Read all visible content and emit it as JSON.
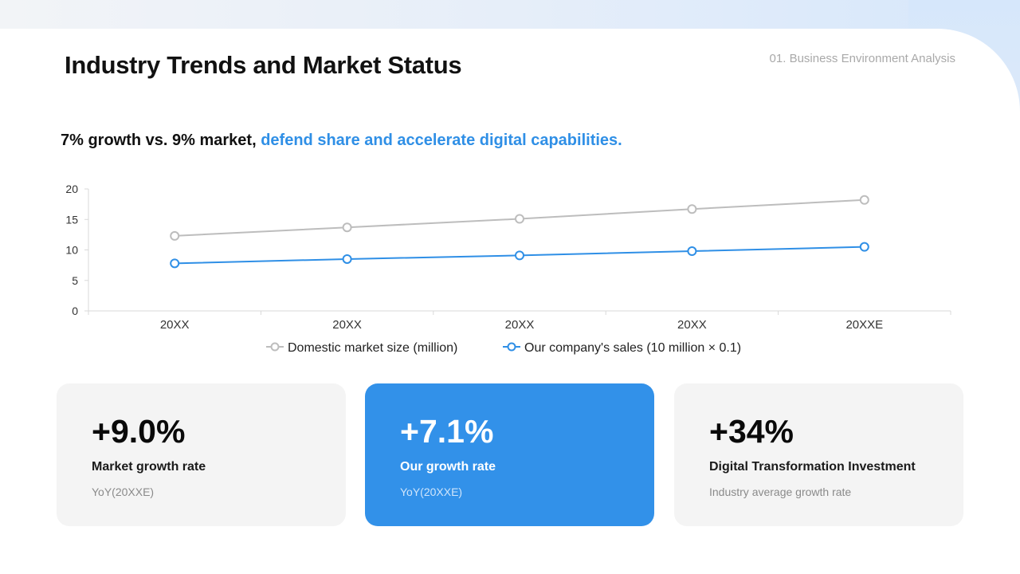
{
  "header": {
    "title": "Industry Trends and Market Status",
    "section": "01. Business Environment Analysis"
  },
  "headline": {
    "plain": "7% growth vs. 9% market, ",
    "accent": "defend share and accelerate digital capabilities."
  },
  "colors": {
    "accent": "#3291e9",
    "market_line": "#bdbdbd",
    "company_line": "#2f8fe6"
  },
  "chart_data": {
    "type": "line",
    "categories": [
      "20XX",
      "20XX",
      "20XX",
      "20XX",
      "20XXE"
    ],
    "ylim": [
      0,
      20
    ],
    "yticks": [
      0,
      5,
      10,
      15,
      20
    ],
    "grid": false,
    "legend": "bottom",
    "series": [
      {
        "name": "Domestic market size (million)",
        "values": [
          12.3,
          13.7,
          15.1,
          16.7,
          18.2
        ]
      },
      {
        "name": "Our company's sales (10 million × 0.1)",
        "values": [
          7.8,
          8.5,
          9.1,
          9.8,
          10.5
        ]
      }
    ]
  },
  "cards": [
    {
      "value": "+9.0%",
      "label": "Market growth rate",
      "sub": "YoY(20XXE)"
    },
    {
      "value": "+7.1%",
      "label": "Our growth rate",
      "sub": "YoY(20XXE)"
    },
    {
      "value": "+34%",
      "label": "Digital Transformation Investment",
      "sub": "Industry average growth rate"
    }
  ]
}
